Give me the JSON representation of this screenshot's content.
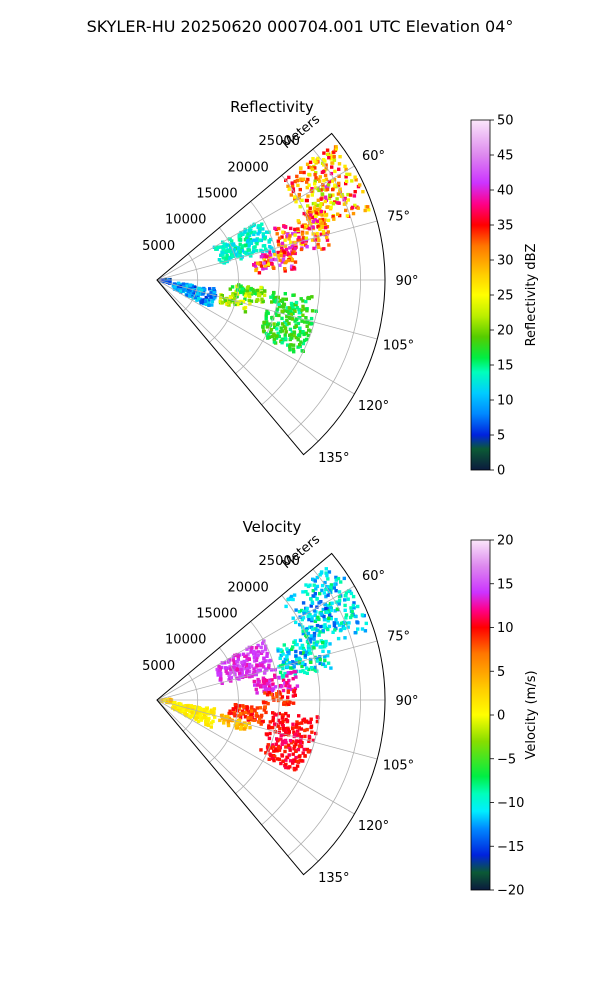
{
  "figure": {
    "suptitle": "SKYLER-HU  20250620  000704.001 UTC Elevation 04°"
  },
  "chart_data": [
    {
      "type": "heatmap",
      "projection": "polar-sector",
      "title": "Reflectivity",
      "azimuth_range_deg": [
        50,
        140
      ],
      "azimuth_ticks_deg": [
        60,
        75,
        90,
        105,
        120,
        135
      ],
      "azimuth_tick_labels": [
        "60°",
        "75°",
        "90°",
        "105°",
        "120°",
        "135°"
      ],
      "range_ticks_m": [
        5000,
        10000,
        15000,
        20000,
        25000
      ],
      "range_tick_labels": [
        "5000",
        "10000",
        "15000",
        "20000",
        "25000"
      ],
      "range_max_m": 28000,
      "range_axis_label": "Meters",
      "grid": true,
      "colorbar": {
        "label": "Reflectivity dBZ",
        "range": [
          0,
          50
        ],
        "ticks": [
          0,
          5,
          10,
          15,
          20,
          25,
          30,
          35,
          40,
          45,
          50
        ],
        "tick_labels": [
          "0",
          "5",
          "10",
          "15",
          "20",
          "25",
          "30",
          "35",
          "40",
          "45",
          "50"
        ],
        "stops": [
          {
            "v": 0,
            "c": "#0b1a3e"
          },
          {
            "v": 3,
            "c": "#0b5a35"
          },
          {
            "v": 5,
            "c": "#0022dd"
          },
          {
            "v": 8,
            "c": "#0088ff"
          },
          {
            "v": 11,
            "c": "#00ccff"
          },
          {
            "v": 14,
            "c": "#00ffbb"
          },
          {
            "v": 16,
            "c": "#00ee44"
          },
          {
            "v": 19,
            "c": "#55cc00"
          },
          {
            "v": 22,
            "c": "#bbee00"
          },
          {
            "v": 25,
            "c": "#ffff00"
          },
          {
            "v": 28,
            "c": "#ffcc00"
          },
          {
            "v": 32,
            "c": "#ff7700"
          },
          {
            "v": 35,
            "c": "#ff0000"
          },
          {
            "v": 38,
            "c": "#ff0088"
          },
          {
            "v": 41,
            "c": "#cc33ff"
          },
          {
            "v": 45,
            "c": "#dd88ee"
          },
          {
            "v": 50,
            "c": "#fbe6fb"
          }
        ]
      },
      "echoes": [
        {
          "az": [
            52,
            72
          ],
          "r": [
            19500,
            27500
          ],
          "value": 30,
          "spread": 12
        },
        {
          "az": [
            66,
            80
          ],
          "r": [
            15500,
            22000
          ],
          "value": 33,
          "spread": 12
        },
        {
          "az": [
            76,
            86
          ],
          "r": [
            12000,
            17500
          ],
          "value": 35,
          "spread": 12
        },
        {
          "az": [
            93,
            103
          ],
          "r": [
            9000,
            13500
          ],
          "value": 20,
          "spread": 7
        },
        {
          "az": [
            103,
            110
          ],
          "r": [
            8000,
            12000
          ],
          "value": 22,
          "spread": 7
        },
        {
          "az": [
            96,
            118
          ],
          "r": [
            14000,
            20000
          ],
          "value": 17,
          "spread": 4
        },
        {
          "az": [
            98,
            118
          ],
          "r": [
            2000,
            7500
          ],
          "value": 9,
          "spread": 6
        },
        {
          "az": [
            60,
            76
          ],
          "r": [
            8000,
            15000
          ],
          "value": 13,
          "spread": 3
        },
        {
          "az": [
            86,
            104
          ],
          "r": [
            200,
            1800
          ],
          "value": 6,
          "spread": 4
        }
      ]
    },
    {
      "type": "heatmap",
      "projection": "polar-sector",
      "title": "Velocity",
      "azimuth_range_deg": [
        50,
        140
      ],
      "azimuth_ticks_deg": [
        60,
        75,
        90,
        105,
        120,
        135
      ],
      "azimuth_tick_labels": [
        "60°",
        "75°",
        "90°",
        "105°",
        "120°",
        "135°"
      ],
      "range_ticks_m": [
        5000,
        10000,
        15000,
        20000,
        25000
      ],
      "range_tick_labels": [
        "5000",
        "10000",
        "15000",
        "20000",
        "25000"
      ],
      "range_max_m": 28000,
      "range_axis_label": "Meters",
      "grid": true,
      "colorbar": {
        "label": "Velocity (m/s)",
        "range": [
          -20,
          20
        ],
        "ticks": [
          -20,
          -15,
          -10,
          -5,
          0,
          5,
          10,
          15,
          20
        ],
        "tick_labels": [
          "−20",
          "−15",
          "−10",
          "−5",
          "0",
          "5",
          "10",
          "15",
          "20"
        ],
        "stops": [
          {
            "v": -20,
            "c": "#0b1a3e"
          },
          {
            "v": -18,
            "c": "#0b5a35"
          },
          {
            "v": -16,
            "c": "#0022dd"
          },
          {
            "v": -13,
            "c": "#0088ff"
          },
          {
            "v": -11,
            "c": "#00eeff"
          },
          {
            "v": -9,
            "c": "#00ffbb"
          },
          {
            "v": -7,
            "c": "#00ee44"
          },
          {
            "v": -3,
            "c": "#88dd00"
          },
          {
            "v": 0,
            "c": "#ffff00"
          },
          {
            "v": 3,
            "c": "#ffcc00"
          },
          {
            "v": 7,
            "c": "#ff7700"
          },
          {
            "v": 10,
            "c": "#ff0000"
          },
          {
            "v": 12,
            "c": "#ff0088"
          },
          {
            "v": 14,
            "c": "#cc33ff"
          },
          {
            "v": 17,
            "c": "#dd88ee"
          },
          {
            "v": 20,
            "c": "#fbe6fb"
          }
        ]
      },
      "echoes": [
        {
          "az": [
            52,
            72
          ],
          "r": [
            19500,
            27500
          ],
          "value": -11,
          "spread": 5
        },
        {
          "az": [
            66,
            80
          ],
          "r": [
            15500,
            22000
          ],
          "value": -10,
          "spread": 5
        },
        {
          "az": [
            78,
            86
          ],
          "r": [
            12000,
            17500
          ],
          "value": 13,
          "spread": 2
        },
        {
          "az": [
            86,
            92
          ],
          "r": [
            13000,
            17500
          ],
          "value": 9,
          "spread": 3
        },
        {
          "az": [
            93,
            103
          ],
          "r": [
            9000,
            13500
          ],
          "value": 9,
          "spread": 3
        },
        {
          "az": [
            103,
            110
          ],
          "r": [
            8000,
            12000
          ],
          "value": 4,
          "spread": 3
        },
        {
          "az": [
            96,
            118
          ],
          "r": [
            14000,
            20000
          ],
          "value": 10,
          "spread": 2
        },
        {
          "az": [
            98,
            118
          ],
          "r": [
            2000,
            7500
          ],
          "value": 1,
          "spread": 1.5
        },
        {
          "az": [
            60,
            76
          ],
          "r": [
            8000,
            15000
          ],
          "value": 14,
          "spread": 2
        },
        {
          "az": [
            86,
            104
          ],
          "r": [
            200,
            1800
          ],
          "value": 3,
          "spread": 3
        }
      ]
    }
  ]
}
